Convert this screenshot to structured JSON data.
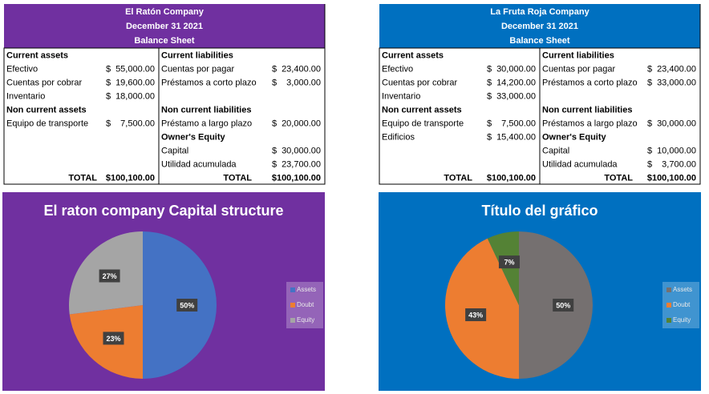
{
  "tables": [
    {
      "title": [
        "El Ratón Company",
        "December 31 2021",
        "Balance Sheet"
      ],
      "color": "#7030a0",
      "rows": [
        [
          "Current assets",
          null,
          null,
          "Current liabilities",
          null,
          null
        ],
        [
          "Efectivo",
          "$",
          "55,000.00",
          "Cuentas por pagar",
          "$",
          "23,400.00"
        ],
        [
          "Cuentas por cobrar",
          "$",
          "19,600.00",
          "Préstamos a corto plazo",
          "$",
          "3,000.00"
        ],
        [
          "Inventario",
          "$",
          "18,000.00",
          null,
          null,
          null
        ],
        [
          "Non current assets",
          null,
          null,
          "Non current liabilities",
          null,
          null
        ],
        [
          "Equipo de transporte",
          "$",
          "7,500.00",
          "Préstamo a largo plazo",
          "$",
          "20,000.00"
        ],
        [
          null,
          null,
          null,
          "Owner's Equity",
          null,
          null
        ],
        [
          null,
          null,
          null,
          "Capital",
          "$",
          "30,000.00"
        ],
        [
          null,
          null,
          null,
          "Utilidad acumulada",
          "$",
          "23,700.00"
        ],
        [
          "TOTAL",
          null,
          "$100,100.00",
          "TOTAL",
          null,
          "$100,100.00"
        ]
      ]
    },
    {
      "title": [
        "La Fruta Roja Company",
        "December 31 2021",
        "Balance Sheet"
      ],
      "color": "#0070c0",
      "rows": [
        [
          "Current assets",
          null,
          null,
          "Current liabilities",
          null,
          null
        ],
        [
          "Efectivo",
          "$",
          "30,000.00",
          "Cuentas por pagar",
          "$",
          "23,400.00"
        ],
        [
          "Cuentas por cobrar",
          "$",
          "14,200.00",
          "Préstamos a corto plazo",
          "$",
          "33,000.00"
        ],
        [
          "Inventario",
          "$",
          "33,000.00",
          null,
          null,
          null
        ],
        [
          "Non current assets",
          null,
          null,
          "Non current liabilities",
          null,
          null
        ],
        [
          "Equipo de transporte",
          "$",
          "7,500.00",
          "Préstamos a largo plazo",
          "$",
          "30,000.00"
        ],
        [
          "Edificios",
          "$",
          "15,400.00",
          "Owner's Equity",
          null,
          null
        ],
        [
          null,
          null,
          null,
          "Capital",
          "$",
          "10,000.00"
        ],
        [
          null,
          null,
          null,
          "Utilidad acumulada",
          "$",
          "3,700.00"
        ],
        [
          "TOTAL",
          null,
          "$100,100.00",
          "TOTAL",
          null,
          "$100,100.00"
        ]
      ]
    }
  ],
  "chart_data": [
    {
      "type": "pie",
      "title": "El raton company Capital structure",
      "background": "#7030a0",
      "categories": [
        "Assets",
        "Doubt",
        "Equity"
      ],
      "values": [
        50,
        23,
        27
      ],
      "value_labels": [
        "50%",
        "23%",
        "27%"
      ],
      "colors": [
        "#4472c4",
        "#ed7d31",
        "#a5a5a5"
      ]
    },
    {
      "type": "pie",
      "title": "Título del gráfico",
      "background": "#0070c0",
      "categories": [
        "Assets",
        "Doubt",
        "Equity"
      ],
      "values": [
        50,
        43,
        7
      ],
      "value_labels": [
        "50%",
        "43%",
        "7%"
      ],
      "colors": [
        "#757070",
        "#ed7d31",
        "#548235"
      ]
    }
  ]
}
